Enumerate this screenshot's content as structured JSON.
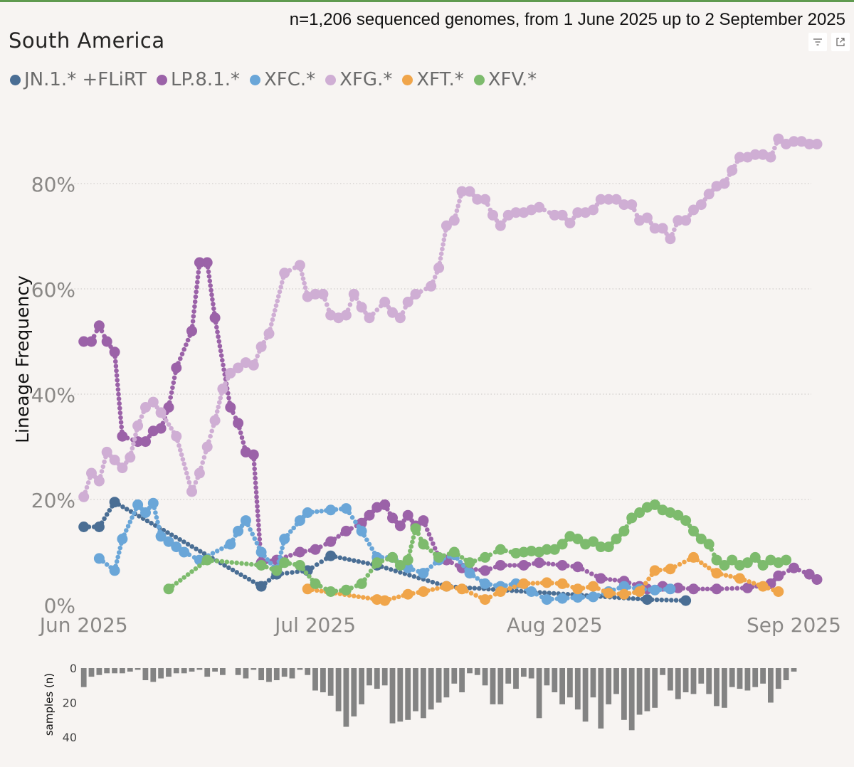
{
  "header": {
    "subtitle": "n=1,206 sequenced genomes, from 1 June 2025 up to 2 September 2025",
    "title": "South America",
    "filter_icon": "filter-icon",
    "focus_icon": "focus-mode-icon"
  },
  "chart_data": {
    "type": "line",
    "title": "South America",
    "subtitle": "n=1,206 sequenced genomes, from 1 June 2025 up to 2 September 2025",
    "ylabel": "Lineage Frequency",
    "xlabel": "",
    "ylim": [
      0,
      100
    ],
    "yticks": [
      0,
      20,
      40,
      60,
      80
    ],
    "ytick_labels": [
      "0%",
      "20%",
      "40%",
      "60%",
      "80%"
    ],
    "xticks": [
      1,
      31,
      62,
      93
    ],
    "xtick_labels": [
      "Jun 2025",
      "Jul 2025",
      "Aug 2025",
      "Sep 2025"
    ],
    "x_unit": "day index from 1 June 2025 (1 = Jun 1)",
    "xlim": [
      -1,
      96
    ],
    "legend_position": "top-left",
    "series": [
      {
        "name": "JN.1.* +FLiRT",
        "color": "#4a6e94",
        "x": [
          1,
          3,
          5,
          24,
          26,
          30,
          33,
          39,
          48,
          74,
          79
        ],
        "y": [
          14.8,
          14.8,
          19.5,
          3.5,
          5.8,
          6.5,
          9.3,
          7.5,
          3.5,
          1.0,
          0.8
        ]
      },
      {
        "name": "LP.8.1.*",
        "color": "#9b62a8",
        "x": [
          1,
          2,
          3,
          4,
          5,
          6,
          8,
          9,
          10,
          11,
          12,
          13,
          15,
          16,
          17,
          18,
          20,
          21,
          22,
          23,
          24,
          26,
          29,
          31,
          33,
          35,
          37,
          38,
          39,
          40,
          41,
          42,
          43,
          44,
          45,
          47,
          48,
          50,
          53,
          55,
          58,
          60,
          63,
          65,
          68,
          71,
          73,
          74,
          76,
          78,
          80,
          83,
          87,
          90,
          91,
          93,
          95,
          96
        ],
        "y": [
          50,
          50,
          53,
          50,
          48,
          32,
          31,
          31,
          33,
          33.5,
          37.5,
          45,
          52,
          65,
          65,
          54.5,
          37.5,
          34.5,
          29,
          28.5,
          8,
          8.5,
          10,
          10.5,
          12,
          14,
          15.5,
          17,
          18.5,
          19,
          16.5,
          15,
          17,
          15,
          16,
          9,
          8.5,
          7,
          6.5,
          7.5,
          7.5,
          8.0,
          7.5,
          7.2,
          5,
          4.5,
          3.5,
          3.0,
          3.5,
          3.2,
          3.0,
          3.0,
          3.2,
          4.0,
          5.5,
          7.0,
          5.8,
          4.8
        ]
      },
      {
        "name": "XFC.*",
        "color": "#6aa6d8",
        "x": [
          3,
          5,
          6,
          8,
          9,
          10,
          11,
          12,
          13,
          14,
          16,
          20,
          21,
          22,
          24,
          26,
          27,
          29,
          30,
          33,
          35,
          37,
          39,
          41,
          43,
          45,
          47,
          49,
          51,
          53,
          55,
          57,
          59,
          61,
          63,
          65,
          67,
          69,
          71,
          73,
          75,
          77
        ],
        "y": [
          8.8,
          6.5,
          12.5,
          19,
          17.5,
          19.3,
          13,
          12,
          11,
          10,
          8.5,
          11.5,
          14,
          16,
          10,
          6.5,
          12.5,
          16,
          17.5,
          18,
          18.3,
          14,
          9,
          9,
          7,
          6,
          8.5,
          9.5,
          6,
          4,
          3.5,
          4,
          2.5,
          1.0,
          1.2,
          1.4,
          1.5,
          2.5,
          3.5,
          3.0,
          2.8,
          3.0
        ]
      },
      {
        "name": "XFG.*",
        "color": "#cfaed4",
        "x": [
          1,
          2,
          3,
          4,
          5,
          6,
          7,
          8,
          9,
          10,
          11,
          13,
          15,
          16,
          17,
          18,
          19,
          20,
          21,
          22,
          23,
          24,
          25,
          27,
          29,
          30,
          31,
          32,
          33,
          34,
          35,
          36,
          37,
          38,
          40,
          41,
          42,
          43,
          44,
          46,
          47,
          48,
          49,
          50,
          51,
          52,
          53,
          54,
          55,
          56,
          57,
          58,
          59,
          60,
          62,
          63,
          64,
          65,
          66,
          67,
          68,
          69,
          70,
          71,
          72,
          73,
          74,
          75,
          76,
          77,
          78,
          79,
          80,
          81,
          82,
          83,
          84,
          85,
          86,
          87,
          88,
          89,
          90,
          91,
          92,
          93,
          94,
          95,
          96
        ],
        "y": [
          20.5,
          25,
          23.5,
          29,
          27.5,
          26,
          28,
          34,
          37.5,
          38.5,
          36.5,
          32,
          21.5,
          25,
          30,
          35,
          41,
          44,
          45,
          46,
          45.5,
          49,
          51.5,
          63,
          64.5,
          58.5,
          59,
          59,
          55,
          54.5,
          55,
          59,
          56.5,
          54.5,
          57.5,
          55.5,
          54.5,
          57.5,
          59,
          60.5,
          64,
          72,
          73,
          78.5,
          78.5,
          77,
          77,
          74,
          72,
          74,
          74.5,
          74.5,
          75,
          75.5,
          74,
          74,
          72.5,
          74.5,
          74.5,
          75,
          77,
          77,
          77,
          76,
          76,
          73,
          73.5,
          71.5,
          71.5,
          69.5,
          73,
          73,
          75,
          76,
          78,
          79.5,
          80,
          82.5,
          85,
          85,
          85.5,
          85.5,
          85,
          88.5,
          87.5,
          88,
          88,
          87.5,
          87.5
        ]
      },
      {
        "name": "XFT.*",
        "color": "#f0a54a",
        "x": [
          30,
          39,
          40,
          43,
          45,
          48,
          50,
          53,
          55,
          58,
          61,
          63,
          65,
          67,
          69,
          71,
          73,
          75,
          77,
          80,
          83,
          86,
          89,
          91
        ],
        "y": [
          3.0,
          1.0,
          0.8,
          2.0,
          2.5,
          3.5,
          3.0,
          1.0,
          2.5,
          4.0,
          4.2,
          4.0,
          3.0,
          3.5,
          2.2,
          2.0,
          2.5,
          6.5,
          6.8,
          9.0,
          6.0,
          5.0,
          3.5,
          2.5
        ]
      },
      {
        "name": "XFV.*",
        "color": "#7dbb6d",
        "x": [
          12,
          17,
          24,
          26,
          27,
          29,
          31,
          33,
          35,
          37,
          39,
          41,
          42,
          43,
          44,
          45,
          47,
          49,
          51,
          53,
          55,
          57,
          58,
          59,
          60,
          61,
          62,
          63,
          64,
          65,
          66,
          67,
          68,
          69,
          70,
          71,
          72,
          73,
          74,
          75,
          76,
          77,
          78,
          79,
          80,
          81,
          82,
          83,
          84,
          85,
          86,
          87,
          88,
          89,
          90,
          91,
          92
        ],
        "y": [
          3,
          8.5,
          7.5,
          6.5,
          8.0,
          7.5,
          4,
          2.5,
          2.8,
          4.0,
          8,
          9,
          7.5,
          8.5,
          14.5,
          11.5,
          9.0,
          10.0,
          8.0,
          9.0,
          10.5,
          9.8,
          10.0,
          10.2,
          10.0,
          10.5,
          10.5,
          11.5,
          13.0,
          12.5,
          11.5,
          12.0,
          11.0,
          11.0,
          12.5,
          14.0,
          16.5,
          17.5,
          18.5,
          19.0,
          18.0,
          17.5,
          17.0,
          16.0,
          14.0,
          12.5,
          11.5,
          8.5,
          7.5,
          8.5,
          7.5,
          8.0,
          9.0,
          7.5,
          8.5,
          8.0,
          8.5
        ]
      }
    ],
    "samples_panel": {
      "ylabel": "samples (n)",
      "yticks": [
        0,
        20,
        40
      ],
      "ytick_labels": [
        "0",
        "20",
        "40"
      ],
      "x": [
        1,
        2,
        3,
        4,
        5,
        6,
        7,
        8,
        9,
        10,
        11,
        12,
        13,
        14,
        15,
        16,
        17,
        18,
        19,
        20,
        21,
        22,
        23,
        24,
        25,
        26,
        27,
        28,
        29,
        30,
        31,
        32,
        33,
        34,
        35,
        36,
        37,
        38,
        39,
        40,
        41,
        42,
        43,
        44,
        45,
        46,
        47,
        48,
        49,
        50,
        51,
        52,
        53,
        54,
        55,
        56,
        57,
        58,
        59,
        60,
        61,
        62,
        63,
        64,
        65,
        66,
        67,
        68,
        69,
        70,
        71,
        72,
        73,
        74,
        75,
        76,
        77,
        78,
        79,
        80,
        81,
        82,
        83,
        84,
        85,
        86,
        87,
        88,
        89,
        90,
        91,
        92,
        93
      ],
      "values": [
        11,
        5,
        4,
        3,
        3,
        3,
        2,
        1,
        7,
        8,
        6,
        5,
        3,
        3,
        2,
        1,
        5,
        2,
        4,
        0,
        4,
        6,
        1,
        7,
        8,
        7,
        5,
        6,
        1,
        4,
        13,
        14,
        16,
        25,
        34,
        28,
        21,
        10,
        12,
        10,
        32,
        31,
        30,
        25,
        29,
        24,
        20,
        17,
        9,
        14,
        3,
        4,
        10,
        21,
        21,
        9,
        12,
        5,
        6,
        29,
        10,
        14,
        21,
        17,
        24,
        31,
        17,
        35,
        21,
        15,
        30,
        36,
        27,
        25,
        23,
        4,
        13,
        18,
        14,
        15,
        9,
        15,
        22,
        23,
        11,
        12,
        13,
        11,
        9,
        20,
        12,
        7,
        2
      ]
    }
  }
}
